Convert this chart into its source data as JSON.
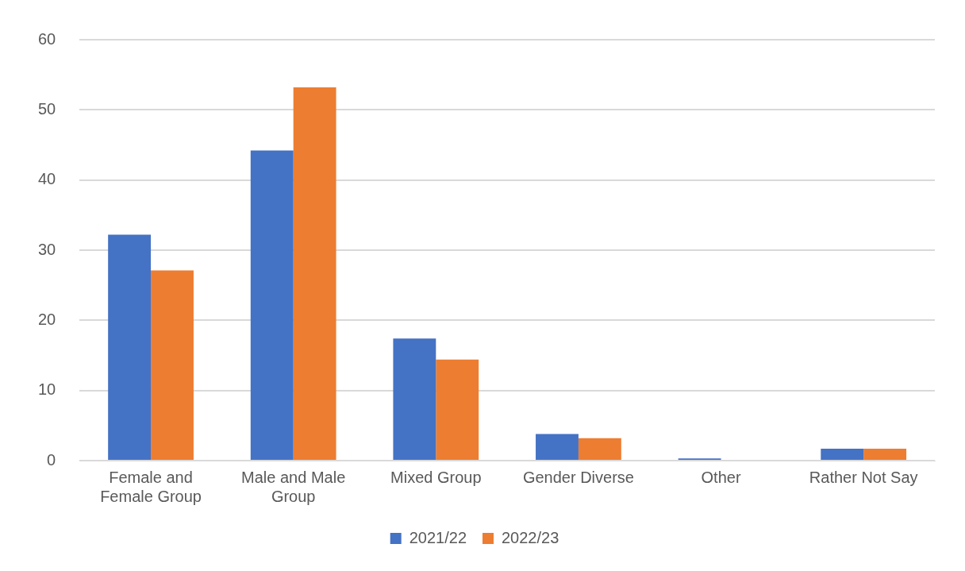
{
  "chart_data": {
    "type": "bar",
    "categories": [
      "Female and Female Group",
      "Male and Male Group",
      "Mixed Group",
      "Gender Diverse",
      "Other",
      "Rather Not Say"
    ],
    "series": [
      {
        "name": "2021/22",
        "color": "#4472c4",
        "values": [
          32.2,
          44.2,
          17.4,
          3.8,
          0.3,
          1.7
        ]
      },
      {
        "name": "2022/23",
        "color": "#ed7d31",
        "values": [
          27.1,
          53.2,
          14.4,
          3.2,
          0,
          1.7
        ]
      }
    ],
    "ylim": [
      0,
      60
    ],
    "yticks": [
      0,
      10,
      20,
      30,
      40,
      50,
      60
    ],
    "grid": "y",
    "legend": "bottom"
  }
}
